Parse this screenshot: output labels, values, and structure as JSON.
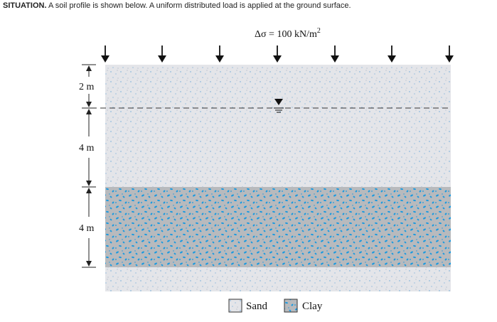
{
  "situation": {
    "label": "SITUATION.",
    "text": "A soil profile is shown below. A uniform distributed load is applied at the ground surface."
  },
  "load": {
    "label": "Δσ = 100 kN/m",
    "exponent": "2",
    "arrow_count": 8
  },
  "layers": [
    {
      "material": "Sand",
      "thickness_m": 2,
      "dim_label": "2 m"
    },
    {
      "material": "Sand",
      "thickness_m": 4,
      "dim_label": "4 m"
    },
    {
      "material": "Clay",
      "thickness_m": 4,
      "dim_label": "4 m"
    }
  ],
  "water_table": {
    "symbol": "water-table",
    "depth_m": 2
  },
  "legend": {
    "sand": "Sand",
    "clay": "Clay"
  },
  "colors": {
    "sand_fill": "#e4e5e9",
    "sand_dots": "#6aa8d8",
    "clay_fill": "#b8babd",
    "clay_flecks": "#1b9ae0",
    "lines": "#333333"
  }
}
